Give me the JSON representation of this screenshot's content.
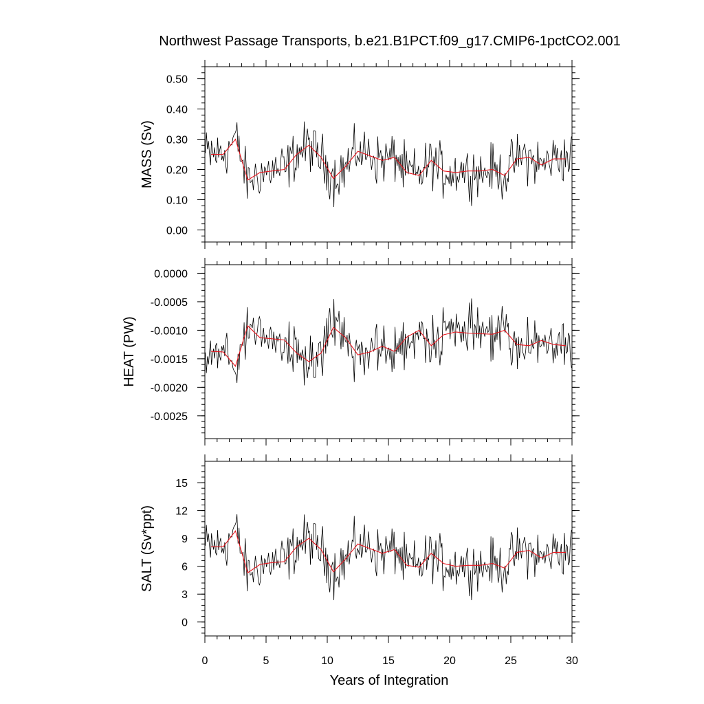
{
  "chart_data": {
    "type": "line",
    "title": "Northwest Passage Transports, b.e21.B1PCT.f09_g17.CMIP6-1pctCO2.001",
    "xlabel": "Years of Integration",
    "xlim": [
      0,
      30
    ],
    "x_ticks": [
      "0",
      "5",
      "10",
      "15",
      "20",
      "25",
      "30"
    ],
    "line_color": "#000000",
    "mean_color": "#e8141c",
    "panels": [
      {
        "name": "mass",
        "ylabel": "MASS (Sv)",
        "ylim": [
          -0.04,
          0.54
        ],
        "y_ticks": [
          0.0,
          0.1,
          0.2,
          0.3,
          0.4,
          0.5
        ],
        "y_tick_labels": [
          "0.00",
          "0.10",
          "0.20",
          "0.30",
          "0.40",
          "0.50"
        ],
        "annual_x": [
          0.5,
          1.5,
          2.5,
          3.5,
          4.5,
          5.5,
          6.5,
          7.5,
          8.5,
          9.5,
          10.5,
          11.5,
          12.5,
          13.5,
          14.5,
          15.5,
          16.5,
          17.5,
          18.5,
          19.5,
          20.5,
          21.5,
          22.5,
          23.5,
          24.5,
          25.5,
          26.5,
          27.5,
          28.5,
          29.5
        ],
        "annual_mean": [
          0.25,
          0.25,
          0.3,
          0.165,
          0.19,
          0.195,
          0.2,
          0.25,
          0.28,
          0.24,
          0.17,
          0.21,
          0.26,
          0.245,
          0.23,
          0.24,
          0.19,
          0.18,
          0.23,
          0.195,
          0.19,
          0.195,
          0.195,
          0.2,
          0.18,
          0.235,
          0.24,
          0.215,
          0.235,
          0.235
        ]
      },
      {
        "name": "heat",
        "ylabel": "HEAT (PW)",
        "ylim": [
          -0.0029,
          0.00015
        ],
        "y_ticks": [
          0.0,
          -0.0005,
          -0.001,
          -0.0015,
          -0.002,
          -0.0025
        ],
        "y_tick_labels": [
          "0.0000",
          "-0.0005",
          "-0.0010",
          "-0.0015",
          "-0.0020",
          "-0.0025"
        ],
        "annual_x": [
          0.5,
          1.5,
          2.5,
          3.5,
          4.5,
          5.5,
          6.5,
          7.5,
          8.5,
          9.5,
          10.5,
          11.5,
          12.5,
          13.5,
          14.5,
          15.5,
          16.5,
          17.5,
          18.5,
          19.5,
          20.5,
          21.5,
          22.5,
          23.5,
          24.5,
          25.5,
          26.5,
          27.5,
          28.5,
          29.5
        ],
        "annual_mean": [
          -0.00137,
          -0.00138,
          -0.00163,
          -0.00092,
          -0.00113,
          -0.00115,
          -0.00117,
          -0.0014,
          -0.00155,
          -0.0014,
          -0.00095,
          -0.00113,
          -0.00143,
          -0.00138,
          -0.00128,
          -0.00137,
          -0.00112,
          -0.001,
          -0.00127,
          -0.00108,
          -0.00103,
          -0.00105,
          -0.00106,
          -0.00107,
          -0.001,
          -0.00125,
          -0.00127,
          -0.00118,
          -0.00125,
          -0.00127
        ]
      },
      {
        "name": "salt",
        "ylabel": "SALT (Sv*ppt)",
        "ylim": [
          -1.5,
          17.3
        ],
        "y_ticks": [
          0,
          3,
          6,
          9,
          12,
          15
        ],
        "y_tick_labels": [
          "0",
          "3",
          "6",
          "9",
          "12",
          "15"
        ],
        "annual_x": [
          0.5,
          1.5,
          2.5,
          3.5,
          4.5,
          5.5,
          6.5,
          7.5,
          8.5,
          9.5,
          10.5,
          11.5,
          12.5,
          13.5,
          14.5,
          15.5,
          16.5,
          17.5,
          18.5,
          19.5,
          20.5,
          21.5,
          22.5,
          23.5,
          24.5,
          25.5,
          26.5,
          27.5,
          28.5,
          29.5
        ],
        "annual_mean": [
          8.1,
          8.1,
          9.8,
          5.3,
          6.2,
          6.4,
          6.5,
          8.1,
          9.0,
          7.8,
          5.4,
          6.8,
          8.4,
          7.9,
          7.4,
          7.8,
          6.1,
          5.9,
          7.4,
          6.3,
          6.0,
          6.1,
          6.1,
          6.3,
          5.8,
          7.5,
          7.7,
          6.9,
          7.5,
          7.5
        ]
      }
    ]
  }
}
